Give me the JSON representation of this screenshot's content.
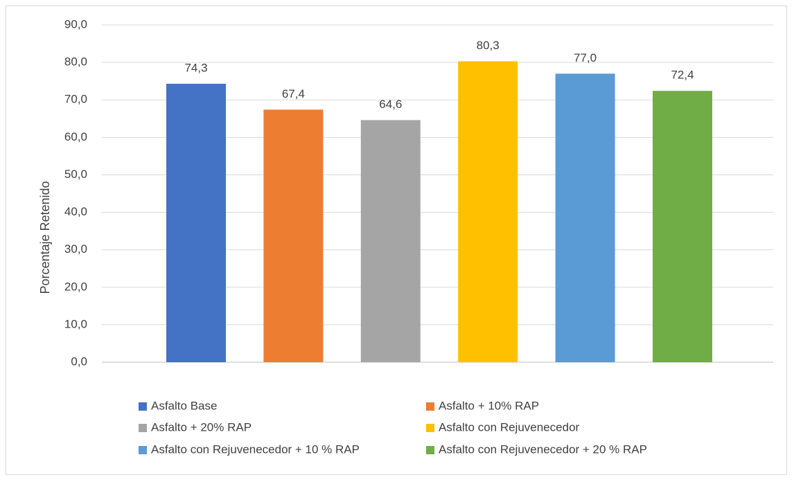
{
  "chart_data": {
    "type": "bar",
    "title": "",
    "xlabel": "",
    "ylabel": "Porcentaje Retenido",
    "ylim": [
      0,
      90
    ],
    "y_ticks": [
      "0,0",
      "10,0",
      "20,0",
      "30,0",
      "40,0",
      "50,0",
      "60,0",
      "70,0",
      "80,0",
      "90,0"
    ],
    "grid": true,
    "legend_position": "bottom",
    "series": [
      {
        "name": "Asfalto Base",
        "value": 74.3,
        "label": "74,3",
        "color": "#4472C4"
      },
      {
        "name": "Asfalto + 10% RAP",
        "value": 67.4,
        "label": "67,4",
        "color": "#ED7D31"
      },
      {
        "name": "Asfalto + 20% RAP",
        "value": 64.6,
        "label": "64,6",
        "color": "#A5A5A5"
      },
      {
        "name": "Asfalto con Rejuvenecedor",
        "value": 80.3,
        "label": "80,3",
        "color": "#FFC000"
      },
      {
        "name": "Asfalto con Rejuvenecedor + 10 % RAP",
        "value": 77.0,
        "label": "77,0",
        "color": "#5B9BD5"
      },
      {
        "name": "Asfalto con Rejuvenecedor + 20 % RAP",
        "value": 72.4,
        "label": "72,4",
        "color": "#70AD47"
      }
    ]
  }
}
